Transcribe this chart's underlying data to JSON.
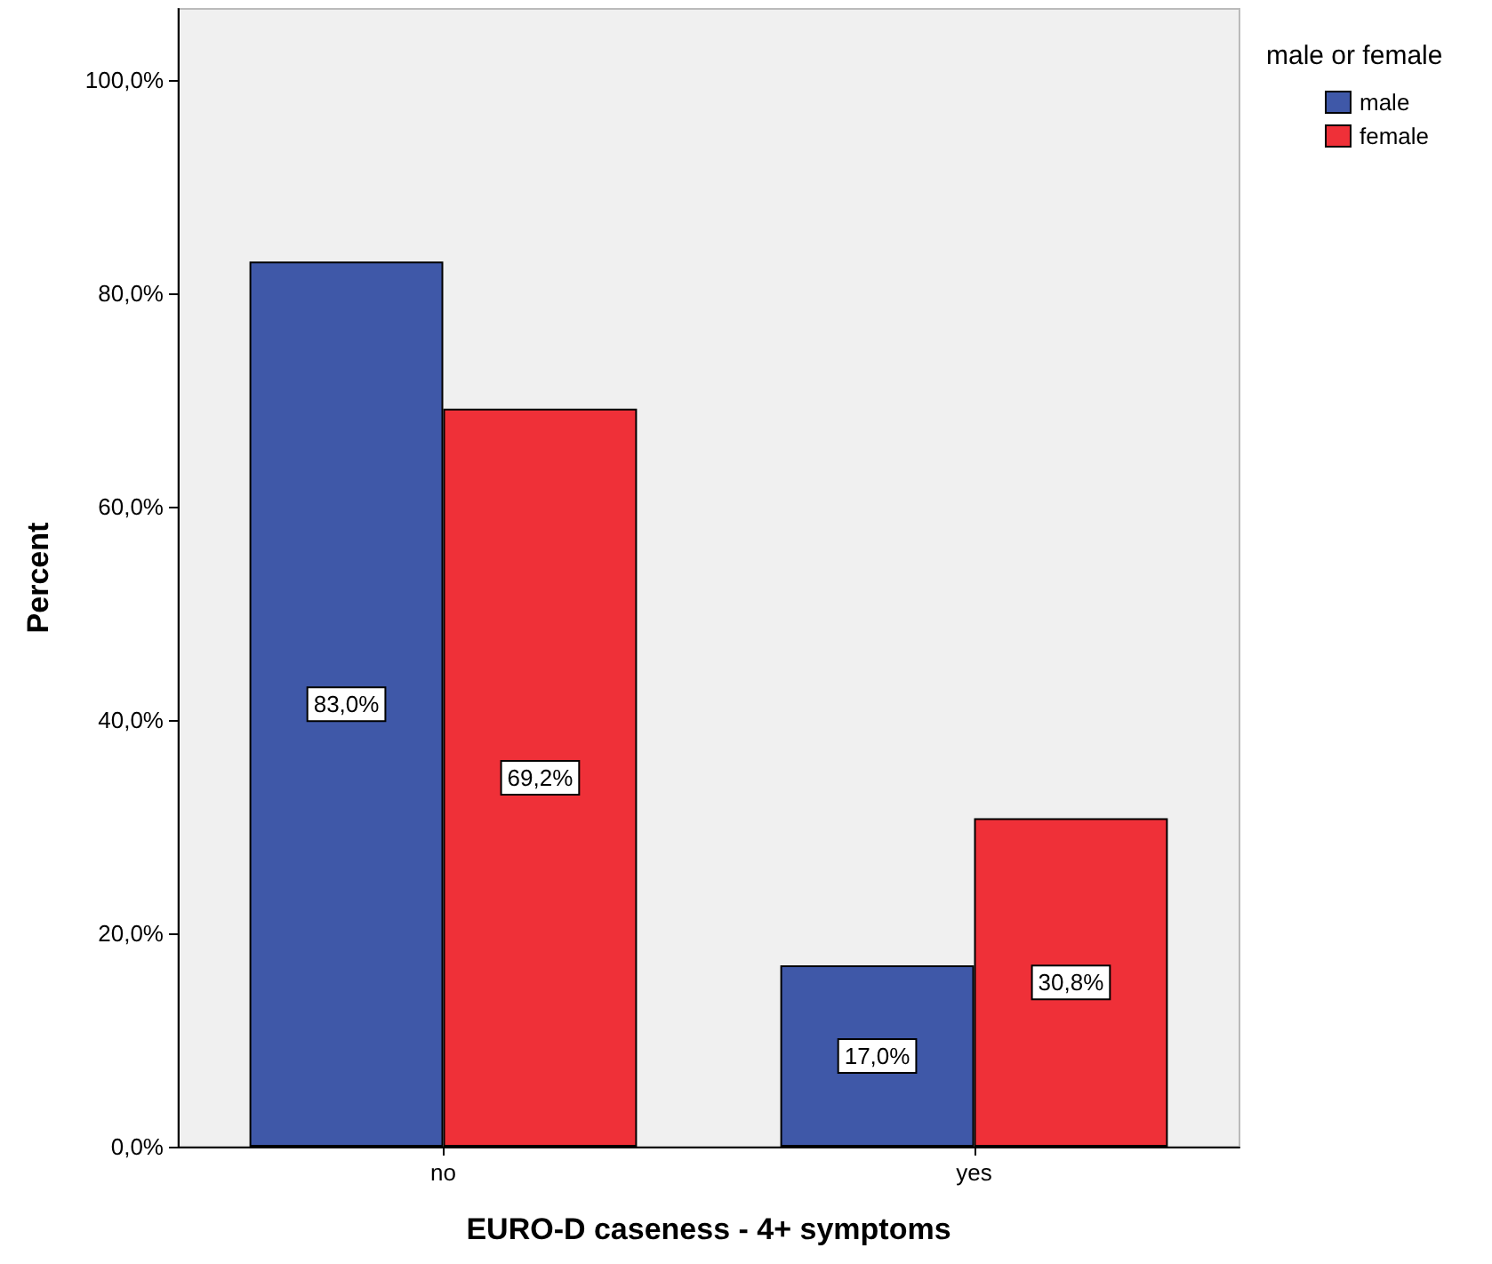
{
  "chart_data": {
    "type": "bar",
    "xlabel": "EURO-D caseness - 4+ symptoms",
    "ylabel": "Percent",
    "legend_title": "male or female",
    "legend": "top right",
    "grid": false,
    "categories": [
      "no",
      "yes"
    ],
    "series": [
      {
        "name": "male",
        "color": "#3f58a8",
        "values": [
          83.0,
          17.0
        ],
        "value_labels": [
          "83,0%",
          "17,0%"
        ]
      },
      {
        "name": "female",
        "color": "#ef3038",
        "values": [
          69.2,
          30.8
        ],
        "value_labels": [
          "69,2%",
          "30,8%"
        ]
      }
    ],
    "ylim": [
      0,
      106.7
    ],
    "yticks": [
      {
        "value": 0,
        "label": "0,0%"
      },
      {
        "value": 20,
        "label": "20,0%"
      },
      {
        "value": 40,
        "label": "40,0%"
      },
      {
        "value": 60,
        "label": "60,0%"
      },
      {
        "value": 80,
        "label": "80,0%"
      },
      {
        "value": 100,
        "label": "100,0%"
      }
    ]
  }
}
